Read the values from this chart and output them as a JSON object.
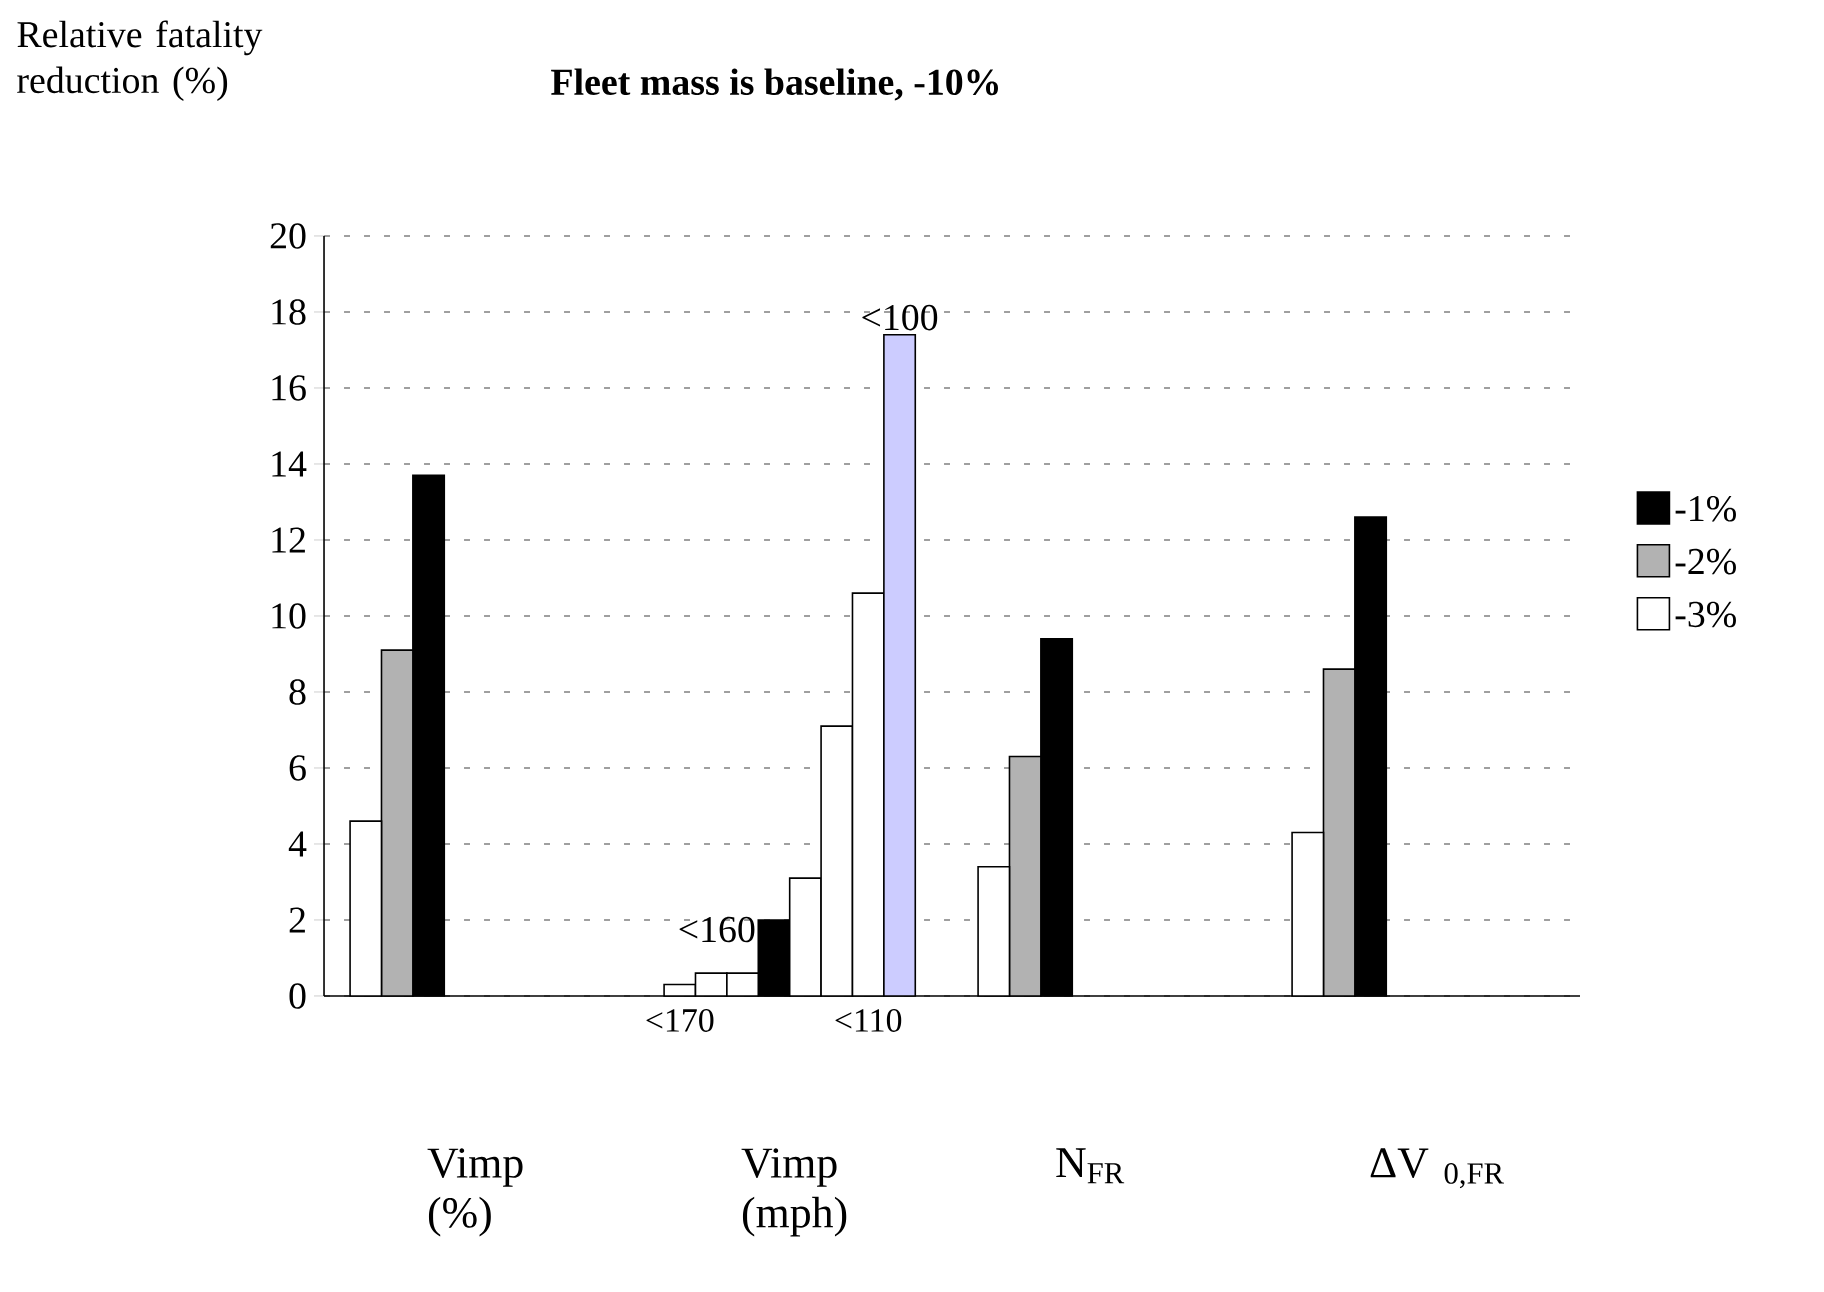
{
  "chart_data": {
    "type": "bar",
    "title": "Fleet mass is baseline, -10%",
    "ylabel": "Relative fatality reduction (%)",
    "categories": [
      null,
      null,
      null,
      null,
      null,
      null,
      null,
      null,
      null,
      null,
      "<170",
      null,
      null,
      null,
      null,
      null,
      "<110",
      null,
      null,
      null,
      null,
      null,
      null,
      null,
      null,
      null,
      null,
      null,
      null,
      null,
      null,
      null,
      null,
      null,
      null,
      null,
      null,
      null,
      null,
      null
    ],
    "series": [
      {
        "name": "-1%",
        "color": "#000000",
        "values": [
          null,
          null,
          13.7,
          null,
          null,
          null,
          null,
          null,
          null,
          null,
          null,
          null,
          null,
          2.0,
          null,
          null,
          null,
          null,
          null,
          null,
          null,
          null,
          9.4,
          null,
          null,
          null,
          null,
          null,
          null,
          null,
          null,
          null,
          12.6,
          null,
          null,
          null,
          null,
          null,
          null,
          null
        ]
      },
      {
        "name": "-2%",
        "color": "#b2b2b2",
        "values": [
          null,
          9.1,
          null,
          null,
          null,
          null,
          null,
          null,
          null,
          null,
          null,
          null,
          null,
          null,
          null,
          null,
          null,
          null,
          null,
          null,
          null,
          6.3,
          null,
          null,
          null,
          null,
          null,
          null,
          null,
          null,
          null,
          8.6,
          null,
          null,
          null,
          null,
          null,
          null,
          null,
          null
        ]
      },
      {
        "name": "-3%",
        "color": "#ffffff",
        "values": [
          4.6,
          null,
          null,
          null,
          null,
          null,
          null,
          null,
          null,
          null,
          0.3,
          0.6,
          0.6,
          null,
          3.1,
          7.1,
          10.6,
          null,
          null,
          null,
          3.4,
          null,
          null,
          null,
          null,
          null,
          null,
          null,
          null,
          null,
          4.3,
          null,
          null,
          null,
          null,
          null,
          null,
          null,
          null,
          null
        ]
      },
      {
        "color": "#ccccff",
        "values": [
          null,
          null,
          null,
          null,
          null,
          null,
          null,
          null,
          null,
          null,
          null,
          null,
          null,
          null,
          null,
          null,
          null,
          17.4,
          null,
          null,
          null,
          null,
          null,
          null,
          null,
          null,
          null,
          null,
          null,
          null,
          null,
          null,
          null,
          null,
          null,
          null,
          null,
          null,
          null,
          null
        ]
      }
    ],
    "ylim": [
      0,
      20
    ],
    "yticks": [
      0,
      2,
      4,
      6,
      8,
      10,
      12,
      14,
      16,
      18,
      20
    ],
    "grid": "y",
    "legend": "right",
    "annotations": [
      "<160",
      "<100",
      "Vimp (%)",
      "Vimp (mph)",
      "N$_{FR}$",
      "ΔV $_{0,FR}$"
    ]
  }
}
